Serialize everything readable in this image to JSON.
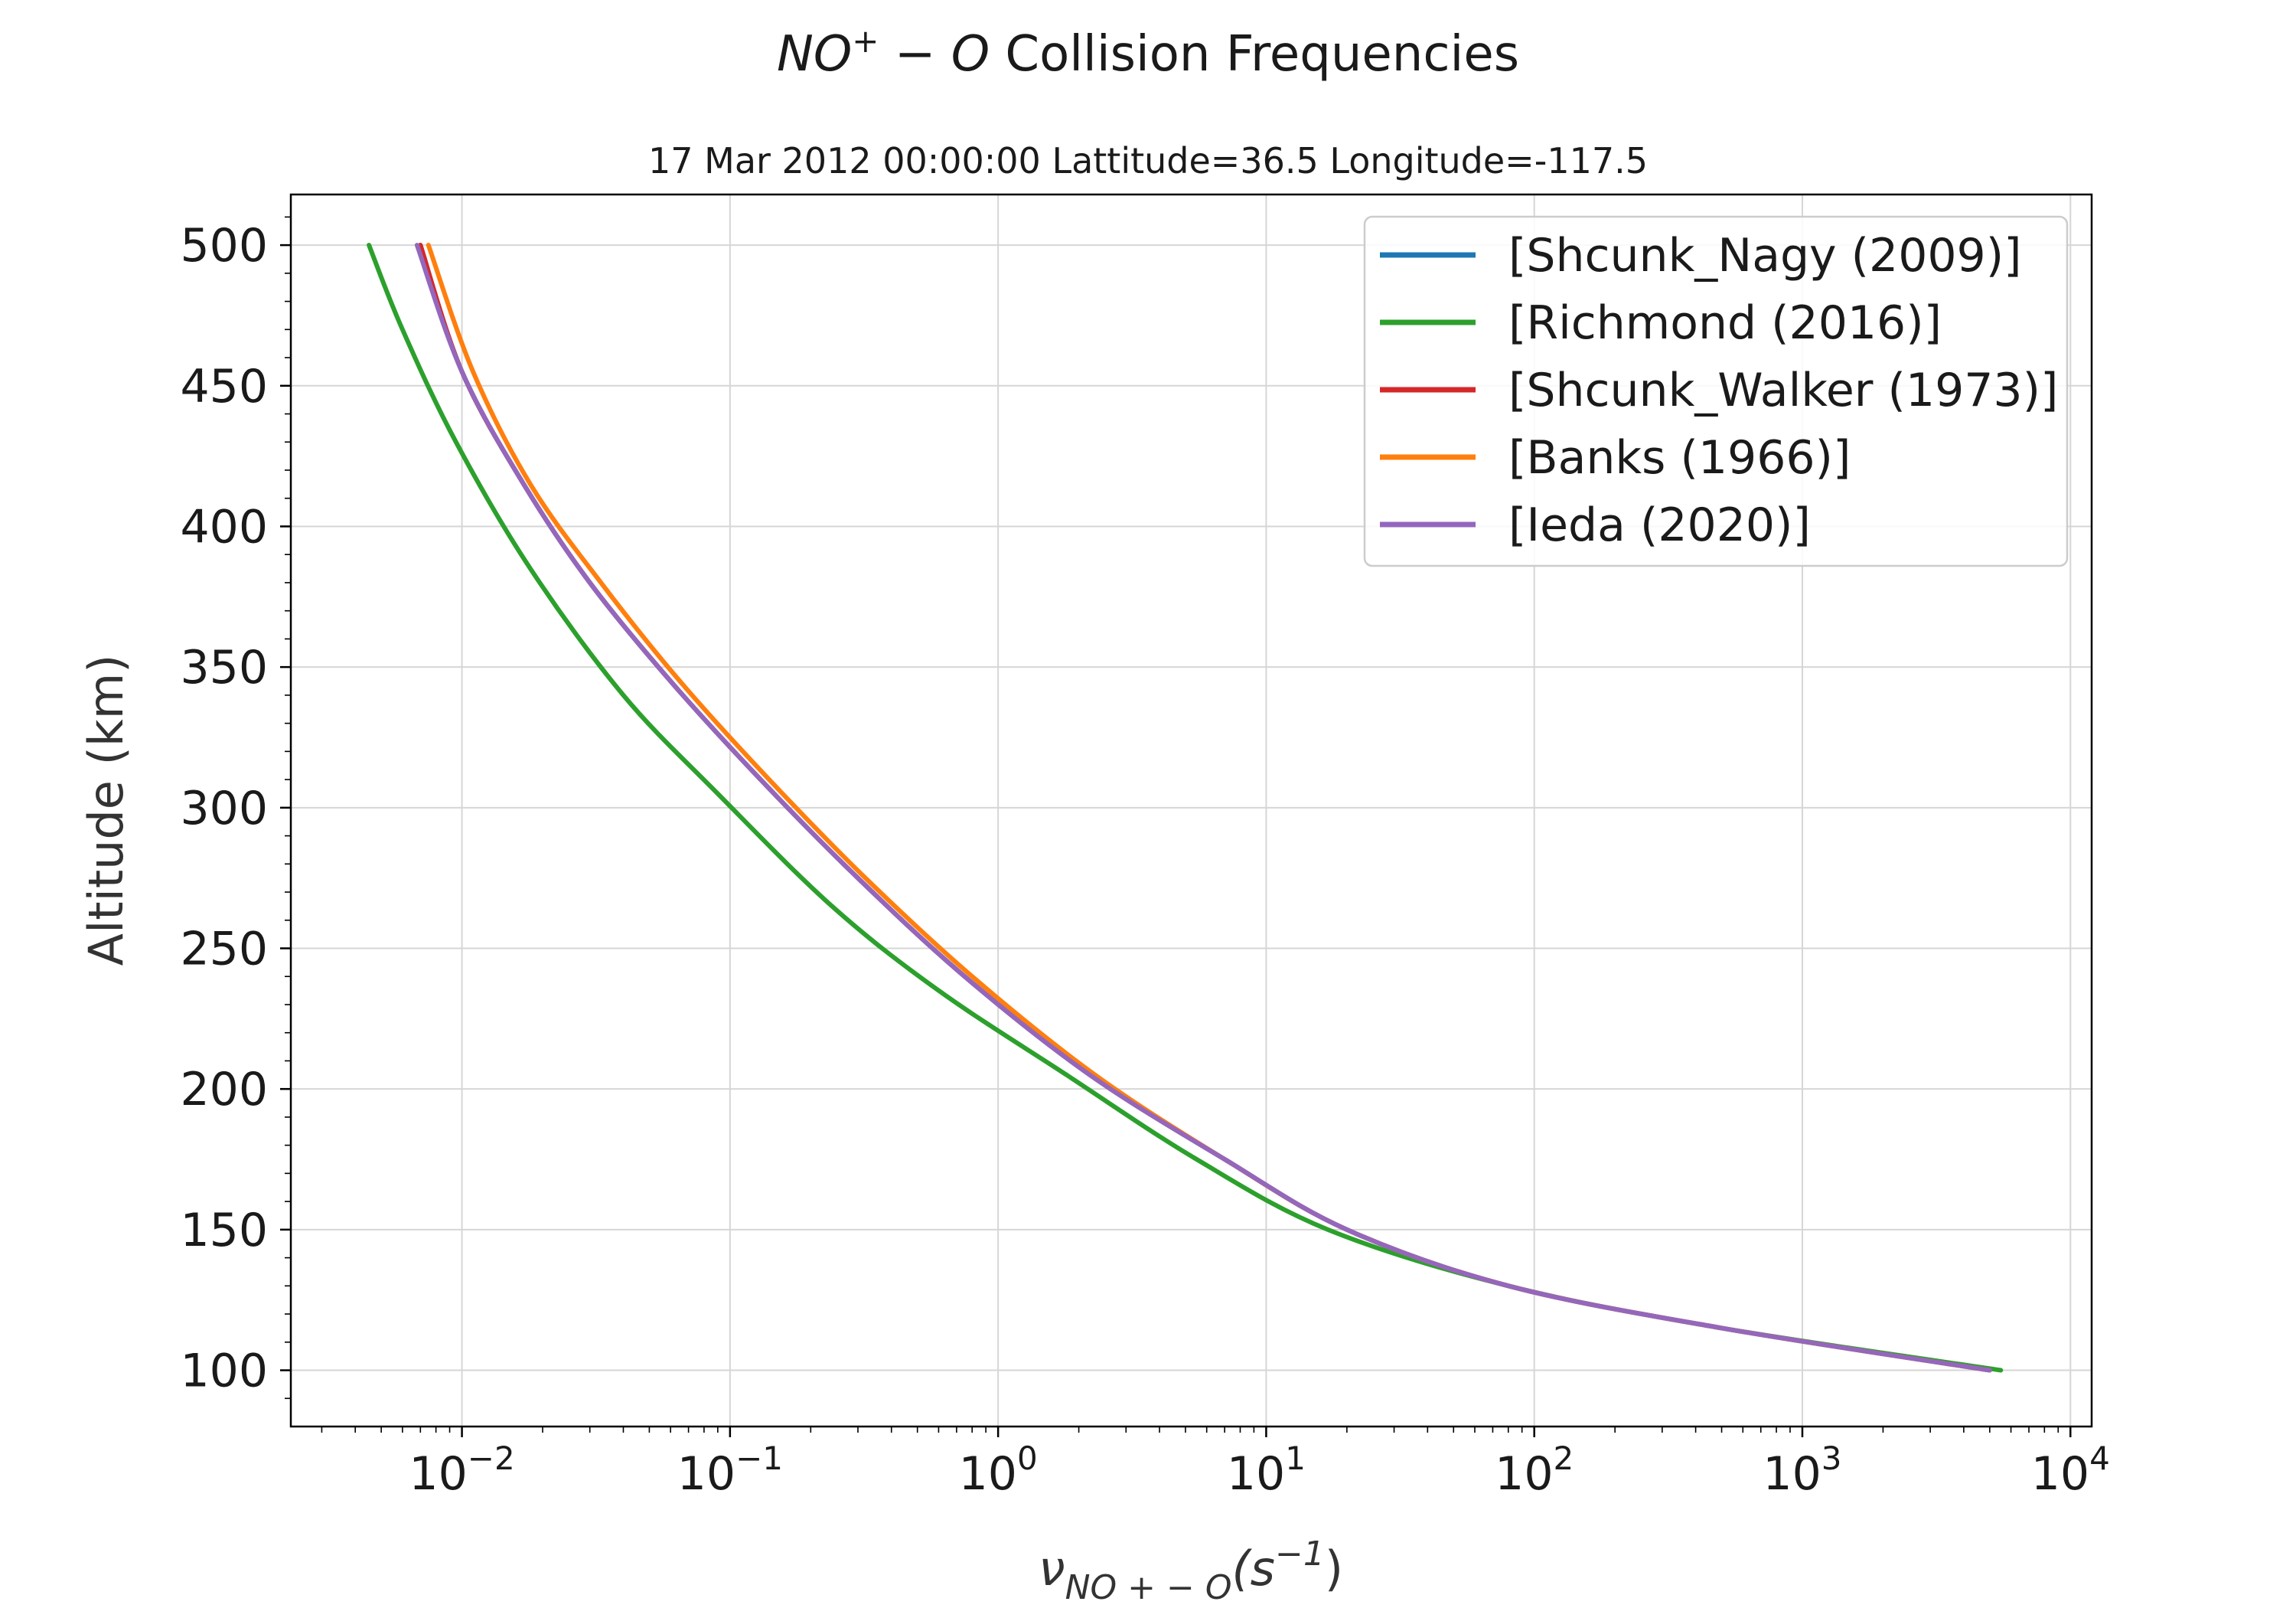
{
  "chart_data": {
    "type": "line",
    "title": "NO⁺ − O Collision Frequencies",
    "title_parts": {
      "species_main": "NO",
      "species_sup": "+",
      "species_rest": " − O",
      "text": " Collision Frequencies"
    },
    "subtitle": "17 Mar 2012 00:00:00 Lattitude=36.5 Longitude=-117.5",
    "xlabel": "ν_{NO+−O}(s⁻¹)",
    "xlabel_parts": {
      "nu": "ν",
      "sub": "NO + − O",
      "open": "(s",
      "sup": "−1",
      "close": ")"
    },
    "ylabel": "Altitude (km)",
    "xscale": "log",
    "xlim": [
      0.0023,
      12000
    ],
    "ylim": [
      80,
      518
    ],
    "x_ticks": [
      {
        "base": "10",
        "exp": "−2",
        "value": 0.01
      },
      {
        "base": "10",
        "exp": "−1",
        "value": 0.1
      },
      {
        "base": "10",
        "exp": "0",
        "value": 1
      },
      {
        "base": "10",
        "exp": "1",
        "value": 10
      },
      {
        "base": "10",
        "exp": "2",
        "value": 100
      },
      {
        "base": "10",
        "exp": "3",
        "value": 1000
      },
      {
        "base": "10",
        "exp": "4",
        "value": 10000
      }
    ],
    "y_ticks": [
      "100",
      "150",
      "200",
      "250",
      "300",
      "350",
      "400",
      "450",
      "500"
    ],
    "grid": true,
    "legend_position": "top-right",
    "series": [
      {
        "name": "[Shcunk_Nagy (2009)]",
        "color": "#1f77b4",
        "points": [
          [
            5000,
            100
          ],
          [
            500,
            115
          ],
          [
            80,
            130
          ],
          [
            20,
            150
          ],
          [
            7,
            175
          ],
          [
            2.2,
            205
          ],
          [
            0.75,
            240
          ],
          [
            0.3,
            275
          ],
          [
            0.13,
            310
          ],
          [
            0.06,
            345
          ],
          [
            0.03,
            380
          ],
          [
            0.017,
            415
          ],
          [
            0.01,
            455
          ],
          [
            0.007,
            500
          ]
        ]
      },
      {
        "name": "[Richmond (2016)]",
        "color": "#2ca02c",
        "points": [
          [
            5500,
            100
          ],
          [
            500,
            115
          ],
          [
            80,
            130
          ],
          [
            17,
            150
          ],
          [
            5.5,
            175
          ],
          [
            1.8,
            205
          ],
          [
            0.6,
            235
          ],
          [
            0.24,
            265
          ],
          [
            0.09,
            305
          ],
          [
            0.04,
            340
          ],
          [
            0.018,
            385
          ],
          [
            0.0095,
            430
          ],
          [
            0.006,
            470
          ],
          [
            0.0045,
            500
          ]
        ]
      },
      {
        "name": "[Shcunk_Walker (1973)]",
        "color": "#d62728",
        "points": [
          [
            5000,
            100
          ],
          [
            500,
            115
          ],
          [
            80,
            130
          ],
          [
            20,
            150
          ],
          [
            7,
            175
          ],
          [
            2.2,
            205
          ],
          [
            0.75,
            240
          ],
          [
            0.3,
            275
          ],
          [
            0.13,
            310
          ],
          [
            0.06,
            345
          ],
          [
            0.03,
            380
          ],
          [
            0.017,
            415
          ],
          [
            0.01,
            455
          ],
          [
            0.007,
            500
          ]
        ]
      },
      {
        "name": "[Banks (1966)]",
        "color": "#ff7f0e",
        "points": [
          [
            5000,
            100
          ],
          [
            500,
            115
          ],
          [
            80,
            130
          ],
          [
            20,
            150
          ],
          [
            7,
            175
          ],
          [
            2.3,
            205
          ],
          [
            0.8,
            240
          ],
          [
            0.32,
            275
          ],
          [
            0.14,
            310
          ],
          [
            0.065,
            345
          ],
          [
            0.033,
            380
          ],
          [
            0.018,
            415
          ],
          [
            0.011,
            455
          ],
          [
            0.0075,
            500
          ]
        ]
      },
      {
        "name": "[Ieda (2020)]",
        "color": "#9467bd",
        "points": [
          [
            5000,
            100
          ],
          [
            500,
            115
          ],
          [
            80,
            130
          ],
          [
            20,
            150
          ],
          [
            7,
            175
          ],
          [
            2.2,
            205
          ],
          [
            0.75,
            240
          ],
          [
            0.3,
            275
          ],
          [
            0.13,
            310
          ],
          [
            0.06,
            345
          ],
          [
            0.03,
            380
          ],
          [
            0.017,
            415
          ],
          [
            0.01,
            455
          ],
          [
            0.0068,
            500
          ]
        ]
      }
    ]
  }
}
